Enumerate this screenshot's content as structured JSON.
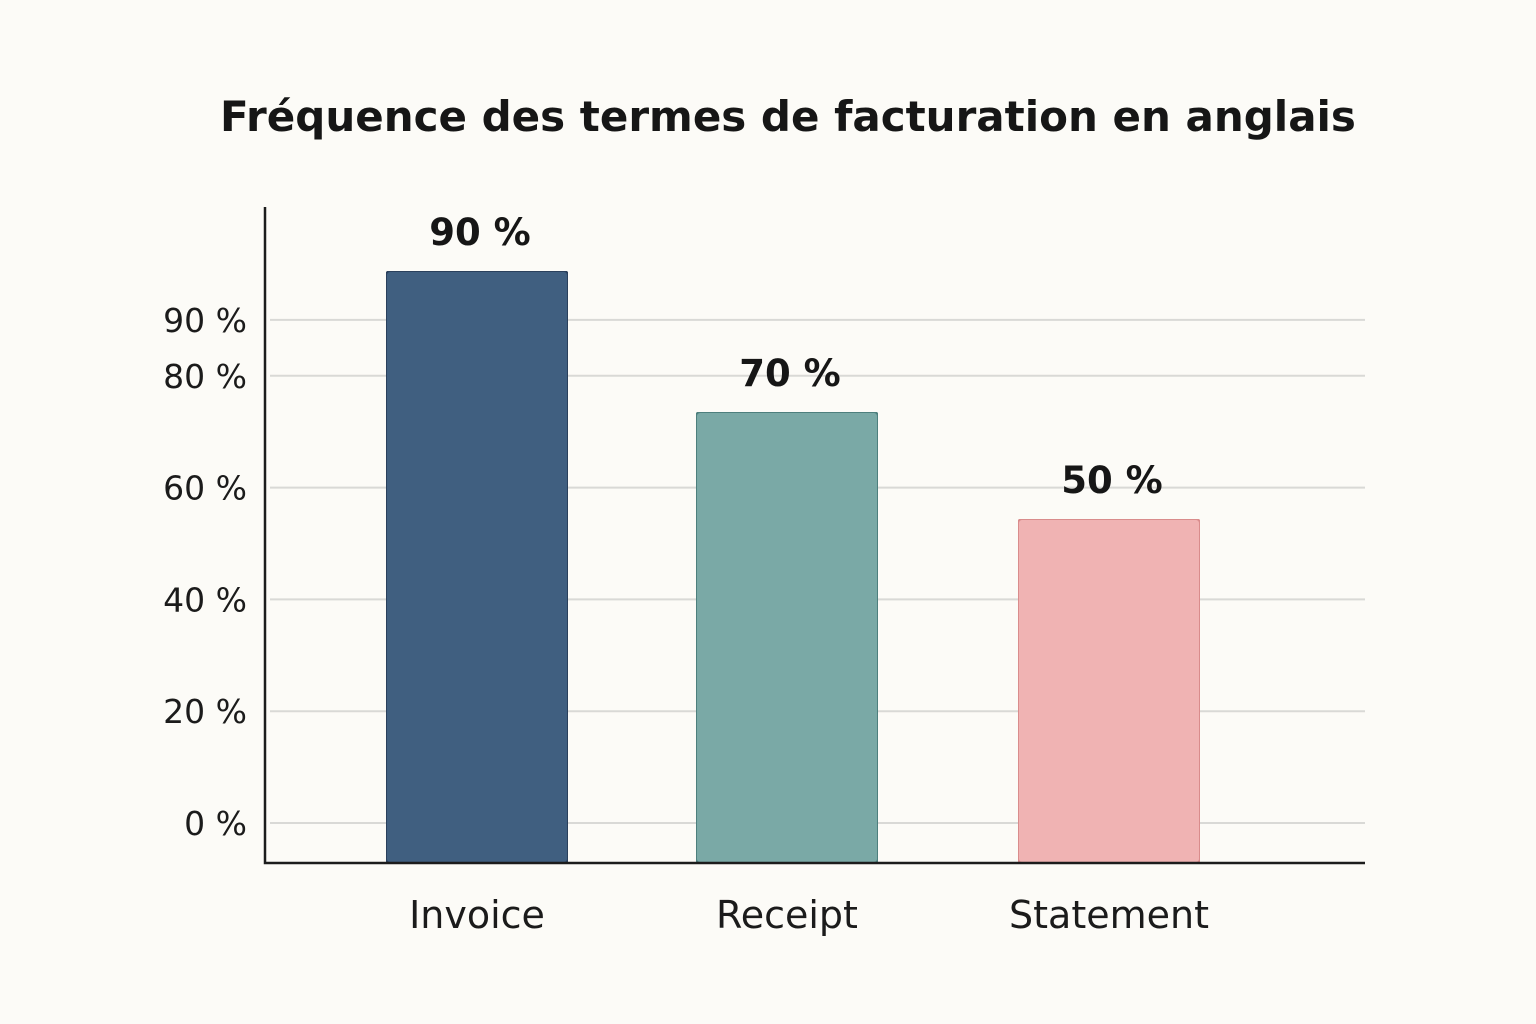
{
  "chart_data": {
    "type": "bar",
    "title": "Fréquence des termes de facturation en anglais",
    "xlabel": "",
    "ylabel": "",
    "categories": [
      "Invoice",
      "Receipt",
      "Statement"
    ],
    "values": [
      90,
      70,
      50
    ],
    "value_labels": [
      "90 %",
      "70 %",
      "50 %"
    ],
    "y_ticks": [
      0,
      20,
      40,
      60,
      80,
      90
    ],
    "y_tick_labels": [
      "0 %",
      "20 %",
      "40 %",
      "60 %",
      "80 %",
      "90 %"
    ],
    "ylim": [
      0,
      100
    ],
    "grid": true,
    "legend": "none",
    "colors": [
      "#3f5e80",
      "#7aa9a6",
      "#f0b3b3"
    ],
    "edge_colors": [
      "#2c405c",
      "#4d7f7d",
      "#d98c8c"
    ]
  }
}
